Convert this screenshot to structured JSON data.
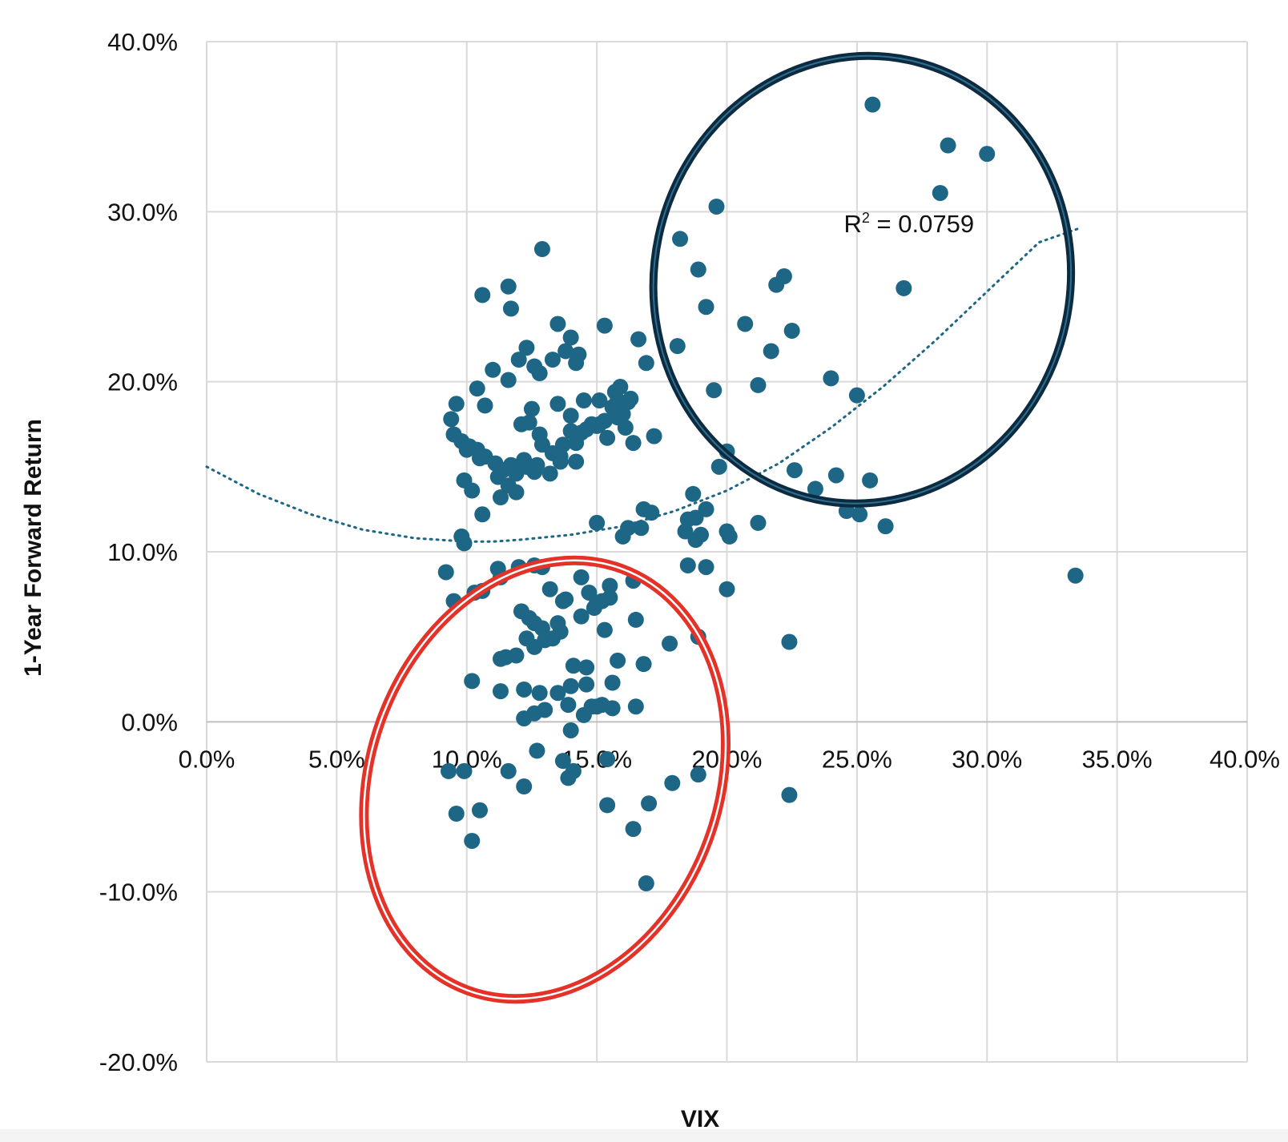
{
  "chart_data": {
    "type": "scatter",
    "title": "",
    "xlabel": "VIX",
    "ylabel": "1-Year Forward Return",
    "xlim": [
      0,
      40
    ],
    "ylim": [
      -20,
      40
    ],
    "x_ticks": [
      "0.0%",
      "5.0%",
      "10.0%",
      "15.0%",
      "20.0%",
      "25.0%",
      "30.0%",
      "35.0%",
      "40.0%"
    ],
    "y_ticks": [
      "-20.0%",
      "-10.0%",
      "0.0%",
      "10.0%",
      "20.0%",
      "30.0%",
      "40.0%"
    ],
    "grid": true,
    "legend": "none",
    "point_color": "#1e6685",
    "annotation": {
      "text": "R",
      "sup": "2",
      "rest": " = 0.0759",
      "x": 27.0,
      "y": 28.8
    },
    "trendline": {
      "type": "polynomial-2",
      "style": "dotted",
      "color": "#1e6685",
      "x": [
        0,
        2,
        4,
        6,
        8,
        10,
        11,
        12,
        14,
        16,
        18,
        20,
        22,
        24,
        26,
        28,
        30,
        32,
        33.5
      ],
      "y": [
        15.0,
        13.4,
        12.2,
        11.3,
        10.8,
        10.6,
        10.6,
        10.7,
        11.0,
        11.5,
        12.4,
        13.6,
        15.2,
        17.3,
        19.7,
        22.4,
        25.3,
        28.2,
        29.0
      ]
    },
    "highlights": [
      {
        "shape": "ellipse",
        "color": "#0d2b40",
        "cx": 25.2,
        "cy": 26.0,
        "rx": 8.0,
        "ry": 13.2,
        "rotate": 12
      },
      {
        "shape": "ellipse",
        "color": "#e53228",
        "cx": 13.0,
        "cy": -3.4,
        "rx": 13.2,
        "ry": 6.7,
        "rotate": -70
      }
    ],
    "x": [
      25.6,
      28.5,
      30.0,
      28.2,
      19.6,
      26.8,
      18.2,
      18.9,
      19.2,
      20.7,
      21.9,
      22.2,
      21.7,
      22.5,
      18.1,
      19.5,
      21.2,
      24.0,
      25.0,
      10.6,
      11.6,
      11.7,
      12.9,
      13.5,
      14.0,
      14.3,
      15.3,
      16.6,
      16.9,
      15.9,
      16.3,
      17.2,
      11.0,
      11.6,
      12.3,
      12.6,
      12.8,
      13.3,
      13.8,
      14.2,
      14.0,
      15.1,
      15.7,
      9.6,
      10.4,
      9.4,
      10.7,
      12.0,
      12.5,
      13.5,
      14.5,
      15.1,
      16.1,
      15.8,
      9.5,
      9.8,
      10.1,
      10.4,
      10.7,
      11.1,
      11.4,
      11.7,
      12.1,
      12.4,
      12.8,
      13.3,
      13.7,
      14.2,
      14.6,
      15.0,
      15.4,
      16.0,
      16.4,
      10.0,
      10.5,
      11.2,
      11.6,
      11.9,
      12.3,
      12.6,
      12.9,
      13.2,
      13.6,
      14.0,
      14.4,
      14.8,
      15.3,
      15.6,
      15.8,
      16.2,
      9.9,
      10.2,
      10.6,
      11.3,
      11.9,
      12.2,
      12.7,
      13.6,
      14.2,
      16.8,
      17.1,
      18.7,
      19.7,
      20.0,
      22.6,
      24.2,
      25.1,
      25.5,
      18.5,
      19.0,
      18.8,
      18.4,
      18.8,
      19.2,
      16.7,
      16.0,
      16.2,
      15.0,
      20.0,
      20.1,
      21.2,
      23.4,
      24.6,
      26.1,
      33.4,
      9.8,
      9.9,
      9.2,
      10.3,
      10.6,
      11.2,
      9.5,
      12.6,
      12.0,
      11.3,
      12.9,
      13.2,
      13.8,
      14.4,
      14.7,
      15.5,
      16.4,
      18.5,
      19.2,
      20.0,
      12.1,
      12.4,
      12.6,
      12.3,
      12.9,
      13.3,
      13.5,
      13.7,
      14.4,
      14.9,
      15.2,
      15.5,
      16.5,
      16.8,
      17.8,
      18.9,
      22.4,
      11.3,
      11.5,
      11.9,
      12.6,
      13.0,
      13.6,
      14.1,
      14.6,
      15.3,
      15.0,
      15.6,
      15.8,
      10.2,
      11.3,
      12.2,
      12.8,
      13.5,
      14.0,
      14.6,
      15.0,
      16.5,
      12.2,
      12.6,
      13.0,
      13.9,
      14.5,
      14.8,
      15.2,
      15.6,
      12.7,
      13.7,
      14.0,
      9.3,
      9.9,
      11.6,
      12.2,
      13.9,
      14.1,
      15.4,
      9.6,
      10.5,
      10.2,
      15.4,
      16.4,
      17.0,
      17.9,
      18.9,
      22.4,
      16.9
    ],
    "y": [
      36.3,
      33.9,
      33.4,
      31.1,
      30.3,
      25.5,
      28.4,
      26.6,
      24.4,
      23.4,
      25.7,
      26.2,
      21.8,
      23.0,
      22.1,
      19.5,
      19.8,
      20.2,
      19.2,
      25.1,
      25.6,
      24.3,
      27.8,
      23.4,
      22.6,
      21.6,
      23.3,
      22.5,
      21.1,
      19.7,
      19.0,
      16.8,
      20.7,
      20.1,
      22.0,
      20.9,
      20.5,
      21.3,
      21.8,
      21.1,
      18.0,
      18.9,
      19.4,
      18.7,
      19.6,
      17.8,
      18.6,
      21.3,
      18.4,
      18.7,
      18.9,
      17.5,
      17.3,
      17.9,
      16.9,
      16.5,
      16.2,
      16.0,
      15.6,
      15.2,
      14.8,
      15.1,
      17.5,
      17.6,
      16.9,
      15.8,
      16.3,
      15.3,
      17.2,
      17.4,
      16.7,
      18.1,
      16.4,
      16.0,
      15.5,
      14.4,
      13.9,
      14.6,
      15.0,
      14.7,
      16.3,
      14.6,
      15.6,
      17.1,
      17.0,
      17.5,
      17.7,
      18.5,
      18.9,
      18.8,
      14.2,
      13.6,
      12.2,
      13.2,
      13.5,
      15.4,
      15.1,
      15.3,
      16.4,
      12.5,
      12.3,
      13.4,
      15.0,
      15.9,
      14.8,
      14.5,
      12.2,
      14.2,
      11.9,
      11.0,
      12.0,
      11.2,
      10.7,
      12.5,
      11.4,
      10.9,
      11.4,
      11.7,
      11.2,
      10.9,
      11.7,
      13.7,
      12.4,
      11.5,
      8.6,
      10.9,
      10.5,
      8.8,
      7.6,
      7.7,
      9.0,
      7.1,
      9.2,
      9.1,
      8.5,
      9.1,
      7.8,
      7.2,
      8.5,
      7.6,
      8.0,
      8.3,
      9.2,
      9.1,
      7.8,
      6.5,
      6.1,
      5.8,
      4.9,
      5.5,
      4.9,
      5.8,
      7.1,
      6.2,
      6.7,
      7.1,
      7.3,
      6.0,
      3.4,
      4.6,
      5.0,
      4.7,
      3.7,
      3.8,
      3.9,
      4.4,
      4.8,
      5.3,
      3.3,
      3.2,
      5.4,
      7.0,
      2.3,
      3.6,
      2.4,
      1.8,
      1.9,
      1.7,
      1.7,
      2.1,
      2.2,
      0.9,
      0.9,
      0.2,
      0.5,
      0.7,
      1.0,
      0.4,
      0.9,
      1.0,
      0.8,
      -1.7,
      -2.3,
      -0.5,
      -2.9,
      -2.9,
      -2.9,
      -3.8,
      -3.3,
      -2.9,
      -2.2,
      -5.4,
      -5.2,
      -7.0,
      -4.9,
      -6.3,
      -4.8,
      -3.6,
      -3.1,
      -4.3,
      -9.5
    ]
  }
}
